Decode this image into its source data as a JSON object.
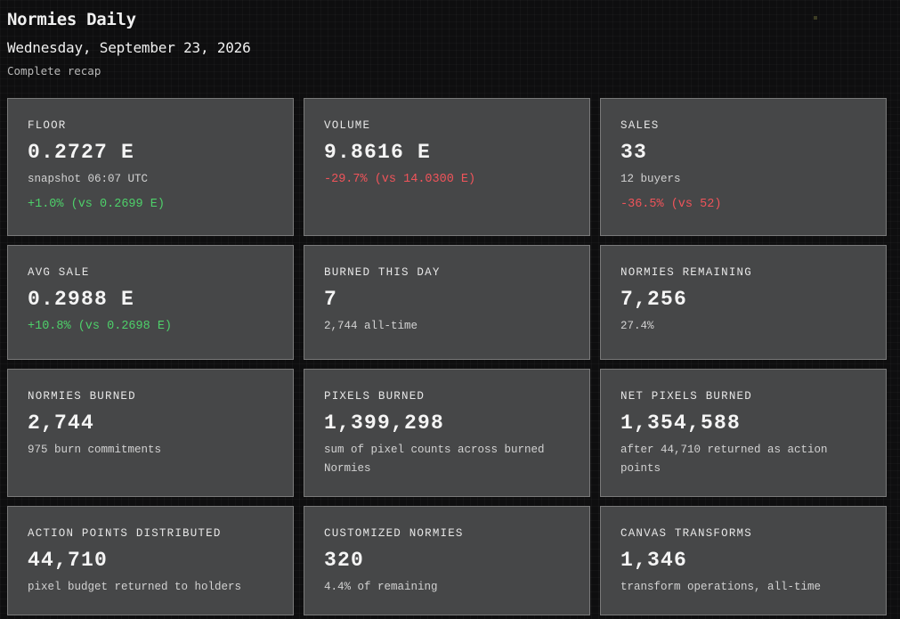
{
  "header": {
    "title": "Normies Daily",
    "date": "Wednesday, September 23, 2026",
    "subtitle": "Complete recap"
  },
  "colors": {
    "positive": "#4ed06a",
    "negative": "#f0545a",
    "card_bg": "#464748"
  },
  "cards": [
    {
      "label": "FLOOR",
      "value": "0.2727 E",
      "sub": "snapshot 06:07 UTC",
      "delta": "+1.0% (vs 0.2699 E)",
      "delta_dir": "positive"
    },
    {
      "label": "VOLUME",
      "value": "9.8616 E",
      "delta": "-29.7% (vs 14.0300 E)",
      "delta_dir": "negative"
    },
    {
      "label": "SALES",
      "value": "33",
      "sub": "12 buyers",
      "delta": "-36.5% (vs 52)",
      "delta_dir": "negative"
    },
    {
      "label": "AVG SALE",
      "value": "0.2988 E",
      "delta": "+10.8% (vs 0.2698 E)",
      "delta_dir": "positive"
    },
    {
      "label": "BURNED THIS DAY",
      "value": "7",
      "sub": "2,744 all-time"
    },
    {
      "label": "NORMIES REMAINING",
      "value": "7,256",
      "sub": "27.4%"
    },
    {
      "label": "NORMIES BURNED",
      "value": "2,744",
      "sub": "975 burn commitments"
    },
    {
      "label": "PIXELS BURNED",
      "value": "1,399,298",
      "sub": "sum of pixel counts across burned Normies"
    },
    {
      "label": "NET PIXELS BURNED",
      "value": "1,354,588",
      "sub": "after 44,710 returned as action points"
    },
    {
      "label": "ACTION POINTS DISTRIBUTED",
      "value": "44,710",
      "sub": "pixel budget returned to holders"
    },
    {
      "label": "CUSTOMIZED NORMIES",
      "value": "320",
      "sub": "4.4% of remaining"
    },
    {
      "label": "CANVAS TRANSFORMS",
      "value": "1,346",
      "sub": "transform operations, all-time"
    }
  ]
}
